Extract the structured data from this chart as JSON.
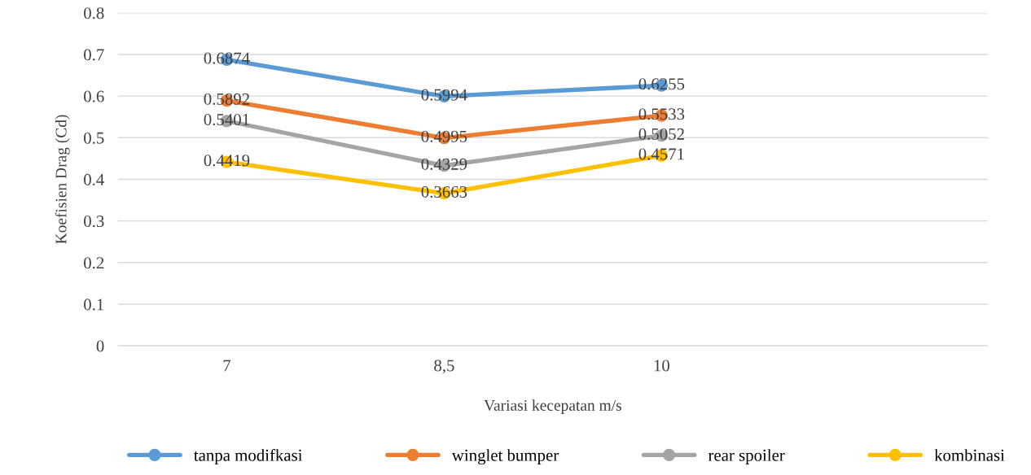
{
  "chart_data": {
    "type": "line",
    "xlabel": "Variasi kecepatan m/s",
    "ylabel": "Koefisien Drag (Cd)",
    "categories": [
      "7",
      "8,5",
      "10",
      null
    ],
    "series": [
      {
        "name": "tanpa modifkasi",
        "color": "#5b9bd5",
        "values": [
          0.6874,
          0.5994,
          0.6255,
          null
        ]
      },
      {
        "name": "winglet bumper",
        "color": "#ed7d31",
        "values": [
          0.5892,
          0.4995,
          0.5533,
          null
        ]
      },
      {
        "name": "rear spoiler",
        "color": "#a5a5a5",
        "values": [
          0.5401,
          0.4329,
          0.5052,
          null
        ]
      },
      {
        "name": "kombinasi",
        "color": "#ffc000",
        "values": [
          0.4419,
          0.3663,
          0.4571,
          null
        ]
      }
    ],
    "ylim": [
      0,
      0.8
    ],
    "yticks": [
      0,
      0.1,
      0.2,
      0.3,
      0.4,
      0.5,
      0.6,
      0.7,
      0.8
    ],
    "grid": "y",
    "legend": "bottom",
    "marker": "circle",
    "line_style": "solid",
    "data_labels": true
  }
}
